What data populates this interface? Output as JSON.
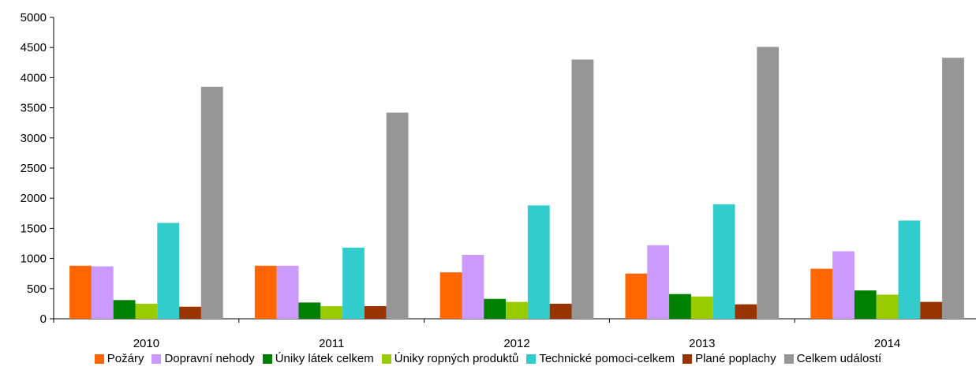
{
  "chart_data": {
    "type": "bar",
    "categories": [
      "2010",
      "2011",
      "2012",
      "2013",
      "2014"
    ],
    "series": [
      {
        "name": "Požáry",
        "color": "#FF6600",
        "values": [
          880,
          880,
          770,
          750,
          830
        ]
      },
      {
        "name": "Dopravní nehody",
        "color": "#CC99FF",
        "values": [
          870,
          880,
          1060,
          1220,
          1120
        ]
      },
      {
        "name": "Úniky látek celkem",
        "color": "#008000",
        "values": [
          310,
          270,
          330,
          410,
          470
        ]
      },
      {
        "name": "Úniky ropných produktů",
        "color": "#99CC00",
        "values": [
          250,
          210,
          280,
          370,
          400
        ]
      },
      {
        "name": "Technické pomoci-celkem",
        "color": "#33CCCC",
        "values": [
          1590,
          1180,
          1880,
          1900,
          1630
        ]
      },
      {
        "name": "Plané poplachy",
        "color": "#993300",
        "values": [
          200,
          210,
          250,
          240,
          280
        ]
      },
      {
        "name": "Celkem událostí",
        "color": "#969696",
        "values": [
          3850,
          3420,
          4300,
          4510,
          4330
        ]
      }
    ],
    "yticks": [
      "0",
      "500",
      "1000",
      "1500",
      "2000",
      "2500",
      "3000",
      "3500",
      "4000",
      "4500",
      "5000"
    ],
    "ylim": [
      0,
      5000
    ],
    "grid": false,
    "legend_position": "bottom"
  }
}
